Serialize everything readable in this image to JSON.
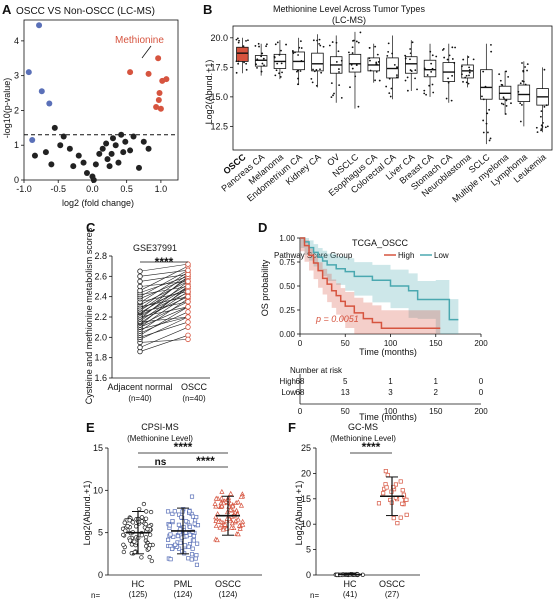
{
  "panels": {
    "A": "A",
    "B": "B",
    "C": "C",
    "D": "D",
    "E": "E",
    "F": "F"
  },
  "colors": {
    "red": "#d6543f",
    "blue": "#5a70b8",
    "teal": "#4aa8b0",
    "gray": "#222222"
  },
  "chart_data": [
    {
      "panel": "A",
      "type": "scatter",
      "title": "OSCC VS Non-OSCC (LC-MS)",
      "xlabel": "log2 (fold change)",
      "ylabel": "-log10(p-value)",
      "xlim": [
        -1,
        1.25
      ],
      "ylim": [
        0,
        4.6
      ],
      "xticks": [
        "-1.0",
        "-0.5",
        "0.0",
        "0.5",
        "1.0"
      ],
      "yticks": [
        "0",
        "1",
        "2",
        "3",
        "4"
      ],
      "threshold": 1.3,
      "annotation": "Methionine",
      "series": [
        {
          "color": "blue",
          "points": [
            [
              -0.78,
              4.45
            ],
            [
              -0.93,
              3.1
            ],
            [
              -0.74,
              2.55
            ],
            [
              -0.63,
              2.2
            ],
            [
              -0.88,
              1.15
            ]
          ]
        },
        {
          "color": "red",
          "points": [
            [
              0.96,
              3.5
            ],
            [
              0.55,
              3.1
            ],
            [
              0.82,
              3.05
            ],
            [
              1.02,
              2.85
            ],
            [
              1.08,
              2.9
            ],
            [
              0.98,
              2.5
            ],
            [
              0.97,
              2.3
            ],
            [
              0.93,
              2.1
            ],
            [
              1.0,
              2.05
            ]
          ]
        },
        {
          "color": "gray",
          "points": [
            [
              -0.55,
              1.5
            ],
            [
              -0.42,
              1.25
            ],
            [
              -0.47,
              1.0
            ],
            [
              -0.68,
              0.8
            ],
            [
              -0.84,
              0.7
            ],
            [
              -0.6,
              0.45
            ],
            [
              -0.33,
              0.9
            ],
            [
              -0.28,
              0.4
            ],
            [
              -0.2,
              0.7
            ],
            [
              -0.13,
              0.5
            ],
            [
              -0.08,
              0.2
            ],
            [
              0.0,
              0.1
            ],
            [
              0.02,
              0.0
            ],
            [
              0.05,
              0.45
            ],
            [
              0.1,
              0.75
            ],
            [
              0.15,
              0.9
            ],
            [
              0.2,
              1.05
            ],
            [
              0.22,
              0.6
            ],
            [
              0.25,
              0.4
            ],
            [
              0.28,
              0.75
            ],
            [
              0.3,
              1.2
            ],
            [
              0.34,
              1.0
            ],
            [
              0.38,
              0.5
            ],
            [
              0.42,
              1.3
            ],
            [
              0.45,
              0.8
            ],
            [
              0.48,
              1.1
            ],
            [
              0.55,
              0.85
            ],
            [
              0.6,
              1.25
            ],
            [
              0.68,
              0.35
            ],
            [
              0.75,
              1.1
            ],
            [
              0.82,
              0.9
            ]
          ]
        }
      ]
    },
    {
      "panel": "B",
      "type": "box",
      "title": "Methionine Level Across Tumor Types",
      "subtitle": "(LC-MS)",
      "ylabel": "Log2(Abund.+1)",
      "ylim": [
        10.5,
        21
      ],
      "yticks": [
        "12.5",
        "15.0",
        "17.5",
        "20.0"
      ],
      "categories": [
        "OSCC",
        "Pancreas CA",
        "Melanoma",
        "Endometrium CA",
        "Kidney CA",
        "OV",
        "NSCLC",
        "Esophagus CA",
        "Colorectal CA",
        "Liver CA",
        "Breast CA",
        "Stomach CA",
        "Neuroblastoma",
        "SCLC",
        "Multiple myeloma",
        "Lymphoma",
        "Leukemia"
      ],
      "highlight": "OSCC",
      "boxes": [
        {
          "q1": 18.0,
          "med": 18.7,
          "q3": 19.2,
          "lo": 17.0,
          "hi": 20.0
        },
        {
          "q1": 17.6,
          "med": 18.1,
          "q3": 18.5,
          "lo": 16.8,
          "hi": 19.5
        },
        {
          "q1": 17.4,
          "med": 18.0,
          "q3": 18.6,
          "lo": 16.5,
          "hi": 19.8
        },
        {
          "q1": 17.3,
          "med": 18.0,
          "q3": 18.8,
          "lo": 16.0,
          "hi": 20.0
        },
        {
          "q1": 17.2,
          "med": 17.8,
          "q3": 18.7,
          "lo": 15.8,
          "hi": 20.3
        },
        {
          "q1": 17.0,
          "med": 17.7,
          "q3": 18.4,
          "lo": 14.5,
          "hi": 20.2
        },
        {
          "q1": 17.1,
          "med": 17.8,
          "q3": 18.6,
          "lo": 14.0,
          "hi": 20.5
        },
        {
          "q1": 17.2,
          "med": 17.7,
          "q3": 18.3,
          "lo": 16.2,
          "hi": 19.5
        },
        {
          "q1": 16.6,
          "med": 17.4,
          "q3": 18.3,
          "lo": 14.8,
          "hi": 20.2
        },
        {
          "q1": 17.0,
          "med": 17.8,
          "q3": 18.4,
          "lo": 15.5,
          "hi": 19.8
        },
        {
          "q1": 16.7,
          "med": 17.3,
          "q3": 18.1,
          "lo": 15.0,
          "hi": 19.5
        },
        {
          "q1": 16.3,
          "med": 17.1,
          "q3": 17.9,
          "lo": 14.5,
          "hi": 19.5
        },
        {
          "q1": 16.6,
          "med": 17.2,
          "q3": 17.7,
          "lo": 15.8,
          "hi": 18.5
        },
        {
          "q1": 14.8,
          "med": 15.8,
          "q3": 17.3,
          "lo": 11.0,
          "hi": 19.5
        },
        {
          "q1": 14.8,
          "med": 15.3,
          "q3": 15.9,
          "lo": 13.5,
          "hi": 17.2
        },
        {
          "q1": 14.6,
          "med": 15.2,
          "q3": 16.0,
          "lo": 12.5,
          "hi": 18.0
        },
        {
          "q1": 14.3,
          "med": 15.0,
          "q3": 15.7,
          "lo": 12.0,
          "hi": 17.5
        }
      ]
    },
    {
      "panel": "C",
      "type": "paired-dot",
      "title": "GSE37991",
      "ylabel": "Cysteine and methionine metabolism scores",
      "ylim": [
        1.6,
        2.8
      ],
      "yticks": [
        "1.6",
        "1.8",
        "2.0",
        "2.2",
        "2.4",
        "2.6",
        "2.8"
      ],
      "categories": [
        "Adjacent normal",
        "OSCC"
      ],
      "ns": [
        "(n=40)",
        "(n=40)"
      ],
      "sig": "****",
      "pairs": [
        [
          1.86,
          2.02
        ],
        [
          1.9,
          2.1
        ],
        [
          1.95,
          1.98
        ],
        [
          1.98,
          2.2
        ],
        [
          2.0,
          2.15
        ],
        [
          2.02,
          2.3
        ],
        [
          2.04,
          2.25
        ],
        [
          2.06,
          2.38
        ],
        [
          2.08,
          2.2
        ],
        [
          2.1,
          2.42
        ],
        [
          2.1,
          2.3
        ],
        [
          2.12,
          2.5
        ],
        [
          2.12,
          2.35
        ],
        [
          2.14,
          2.45
        ],
        [
          2.15,
          2.2
        ],
        [
          2.16,
          2.48
        ],
        [
          2.18,
          2.4
        ],
        [
          2.18,
          2.55
        ],
        [
          2.2,
          2.3
        ],
        [
          2.2,
          2.5
        ],
        [
          2.22,
          2.44
        ],
        [
          2.22,
          2.6
        ],
        [
          2.24,
          2.52
        ],
        [
          2.25,
          2.35
        ],
        [
          2.26,
          2.58
        ],
        [
          2.28,
          2.48
        ],
        [
          2.28,
          2.62
        ],
        [
          2.3,
          2.4
        ],
        [
          2.32,
          2.55
        ],
        [
          2.34,
          2.64
        ],
        [
          2.35,
          2.45
        ],
        [
          2.38,
          2.58
        ],
        [
          2.4,
          2.66
        ],
        [
          2.42,
          2.5
        ],
        [
          2.44,
          2.6
        ],
        [
          2.46,
          2.7
        ],
        [
          2.5,
          2.55
        ],
        [
          2.55,
          2.62
        ],
        [
          2.6,
          2.66
        ],
        [
          2.65,
          2.72
        ]
      ]
    },
    {
      "panel": "D",
      "type": "survival",
      "title": "TCGA_OSCC",
      "legend_title": "Pathway Score Group",
      "legend": [
        "High",
        "Low"
      ],
      "xlabel": "Time (months)",
      "ylabel": "OS probability",
      "xlim": [
        0,
        200
      ],
      "ylim": [
        0,
        1
      ],
      "xticks": [
        "0",
        "50",
        "100",
        "150",
        "200"
      ],
      "yticks": [
        "0.00",
        "0.25",
        "0.50",
        "0.75",
        "1.00"
      ],
      "pvalue": "p = 0.0051",
      "risk_title": "Number at risk",
      "risk_rows": [
        {
          "label": "High",
          "values": [
            "68",
            "5",
            "1",
            "1",
            "0"
          ]
        },
        {
          "label": "Low",
          "values": [
            "68",
            "13",
            "3",
            "2",
            "0"
          ]
        }
      ],
      "risk_xlabel": "Time (months)",
      "high_curve": [
        [
          0,
          1
        ],
        [
          5,
          0.92
        ],
        [
          10,
          0.82
        ],
        [
          15,
          0.74
        ],
        [
          20,
          0.66
        ],
        [
          25,
          0.58
        ],
        [
          30,
          0.52
        ],
        [
          35,
          0.45
        ],
        [
          40,
          0.4
        ],
        [
          45,
          0.34
        ],
        [
          50,
          0.29
        ],
        [
          60,
          0.22
        ],
        [
          70,
          0.16
        ],
        [
          80,
          0.12
        ],
        [
          90,
          0.06
        ],
        [
          155,
          0.06
        ]
      ],
      "low_curve": [
        [
          0,
          1
        ],
        [
          5,
          0.96
        ],
        [
          10,
          0.9
        ],
        [
          15,
          0.85
        ],
        [
          20,
          0.8
        ],
        [
          25,
          0.76
        ],
        [
          30,
          0.72
        ],
        [
          40,
          0.68
        ],
        [
          50,
          0.65
        ],
        [
          60,
          0.6
        ],
        [
          80,
          0.56
        ],
        [
          100,
          0.5
        ],
        [
          120,
          0.45
        ],
        [
          130,
          0.36
        ],
        [
          150,
          0.36
        ],
        [
          165,
          0.15
        ],
        [
          175,
          0.15
        ]
      ]
    },
    {
      "panel": "E",
      "type": "dot-plot",
      "title": "CPSI-MS",
      "subtitle": "(Methionine Level)",
      "ylabel": "Log2(Abund.+1)",
      "ylim": [
        0,
        15
      ],
      "yticks": [
        "0",
        "5",
        "10",
        "15"
      ],
      "categories": [
        "HC",
        "PML",
        "OSCC"
      ],
      "ns": [
        "(125)",
        "(124)",
        "(124)"
      ],
      "n_prefix": "n=",
      "means": [
        5.0,
        5.2,
        7.0
      ],
      "sds": [
        2.5,
        2.7,
        2.3
      ],
      "comparisons": [
        {
          "a": 0,
          "b": 2,
          "label": "****"
        },
        {
          "a": 0,
          "b": 1,
          "label": "ns"
        },
        {
          "a": 1,
          "b": 2,
          "label": "****"
        }
      ]
    },
    {
      "panel": "F",
      "type": "dot-plot",
      "title": "GC-MS",
      "subtitle": "(Methionine Level)",
      "ylabel": "Log2(Abund.+1)",
      "ylim": [
        0,
        25
      ],
      "yticks": [
        "0",
        "5",
        "10",
        "15",
        "20",
        "25"
      ],
      "categories": [
        "HC",
        "OSCC"
      ],
      "ns": [
        "(41)",
        "(27)"
      ],
      "n_prefix": "n=",
      "means": [
        0.1,
        15.5
      ],
      "sds": [
        0.2,
        3.8
      ],
      "comparisons": [
        {
          "a": 0,
          "b": 1,
          "label": "****"
        }
      ]
    }
  ]
}
